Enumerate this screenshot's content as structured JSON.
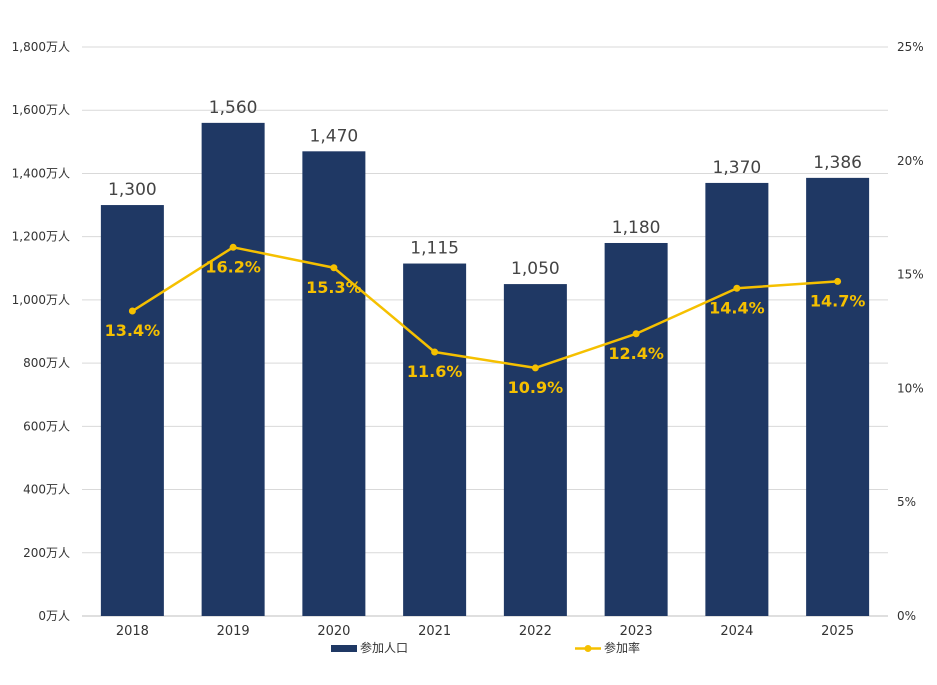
{
  "chart_data": {
    "type": "bar",
    "categories": [
      "2018",
      "2019",
      "2020",
      "2021",
      "2022",
      "2023",
      "2024",
      "2025"
    ],
    "series": [
      {
        "name": "参加人口",
        "type": "bar",
        "axis": "left",
        "values": [
          1300,
          1560,
          1470,
          1115,
          1050,
          1180,
          1370,
          1386
        ],
        "labels": [
          "1,300",
          "1,560",
          "1,470",
          "1,115",
          "1,050",
          "1,180",
          "1,370",
          "1,386"
        ],
        "color": "#1f3864"
      },
      {
        "name": "参加率",
        "type": "line",
        "axis": "right",
        "values": [
          13.4,
          16.2,
          15.3,
          11.6,
          10.9,
          12.4,
          14.4,
          14.7
        ],
        "labels": [
          "13.4%",
          "16.2%",
          "15.3%",
          "11.6%",
          "10.9%",
          "12.4%",
          "14.4%",
          "14.7%"
        ],
        "color": "#f5c000"
      }
    ],
    "y_left": {
      "min": 0,
      "max": 1800,
      "ticks": [
        0,
        200,
        400,
        600,
        800,
        1000,
        1200,
        1400,
        1600,
        1800
      ],
      "tick_labels": [
        "0万人",
        "200万人",
        "400万人",
        "600万人",
        "800万人",
        "1,000万人",
        "1,200万人",
        "1,400万人",
        "1,600万人",
        "1,800万人"
      ]
    },
    "y_right": {
      "min": 0,
      "max": 25,
      "ticks": [
        0,
        5,
        10,
        15,
        20,
        25
      ],
      "tick_labels": [
        "0%",
        "5%",
        "10%",
        "15%",
        "20%",
        "25%"
      ]
    },
    "grid": true,
    "legend": "bottom",
    "colors": {
      "grid": "#d9d9d9",
      "axis": "#bfbfbf",
      "bar": "#1f3864",
      "line": "#f5c000"
    }
  }
}
